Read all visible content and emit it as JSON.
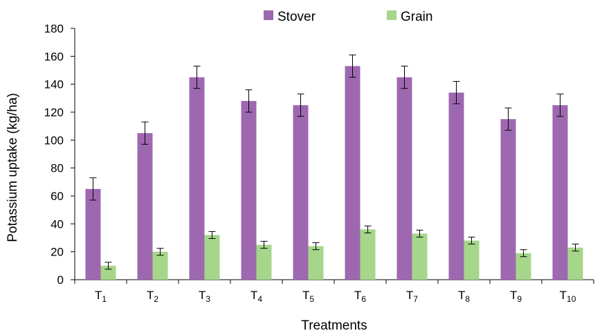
{
  "chart_data": {
    "type": "bar",
    "categories": [
      "T",
      "T",
      "T",
      "T",
      "T",
      "T",
      "T",
      "T",
      "T",
      "T"
    ],
    "category_subscripts": [
      "1",
      "2",
      "3",
      "4",
      "5",
      "6",
      "7",
      "8",
      "9",
      "10"
    ],
    "series": [
      {
        "name": "Stover",
        "color": "#9e68b0",
        "values": [
          65,
          105,
          145,
          128,
          125,
          153,
          145,
          134,
          115,
          125
        ],
        "error": [
          8,
          8,
          8,
          8,
          8,
          8,
          8,
          8,
          8,
          8
        ]
      },
      {
        "name": "Grain",
        "color": "#a6d68a",
        "values": [
          10,
          20,
          32,
          25,
          24,
          36,
          33,
          28,
          19,
          23
        ],
        "error": [
          2.5,
          2.5,
          2.5,
          2.5,
          2.5,
          2.5,
          2.5,
          2.5,
          2.5,
          2.5
        ]
      }
    ],
    "xlabel": "Treatments",
    "ylabel": "Potassium uptake (kg/ha)",
    "ylim": [
      0,
      180
    ],
    "yticks": [
      0,
      20,
      40,
      60,
      80,
      100,
      120,
      140,
      160,
      180
    ],
    "grid": false,
    "legend_position": "top"
  }
}
